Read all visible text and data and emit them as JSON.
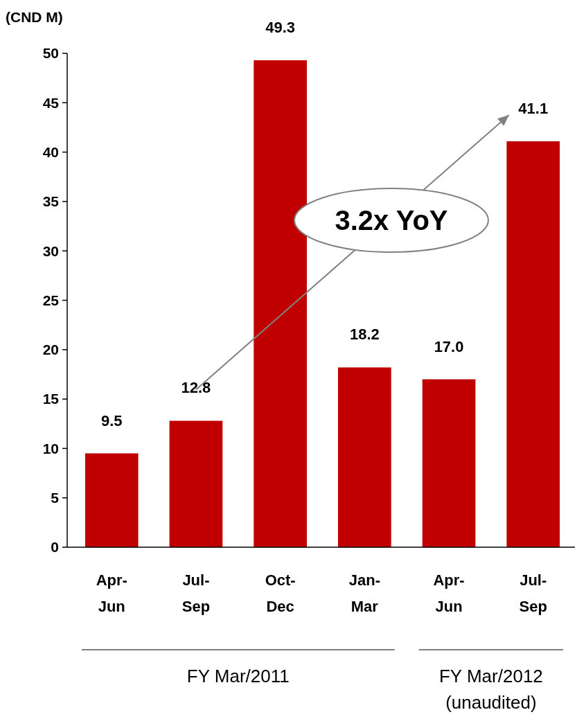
{
  "chart_data": {
    "type": "bar",
    "ylabel": "(CND M)",
    "categories": [
      "Apr-\nJun",
      "Jul-\nSep",
      "Oct-\nDec",
      "Jan-\nMar",
      "Apr-\nJun",
      "Jul-\nSep"
    ],
    "values": [
      9.5,
      12.8,
      49.3,
      18.2,
      17.0,
      41.1
    ],
    "value_labels": [
      "9.5",
      "12.8",
      "49.3",
      "18.2",
      "17.0",
      "41.1"
    ],
    "color": "#c00000",
    "ylim": [
      0,
      50
    ],
    "yticks": [
      0,
      5,
      10,
      15,
      20,
      25,
      30,
      35,
      40,
      45,
      50
    ],
    "grid": false,
    "annotations": [
      "3.2x YoY",
      "FY Mar/2011",
      "FY Mar/2012\n(unaudited)"
    ]
  }
}
